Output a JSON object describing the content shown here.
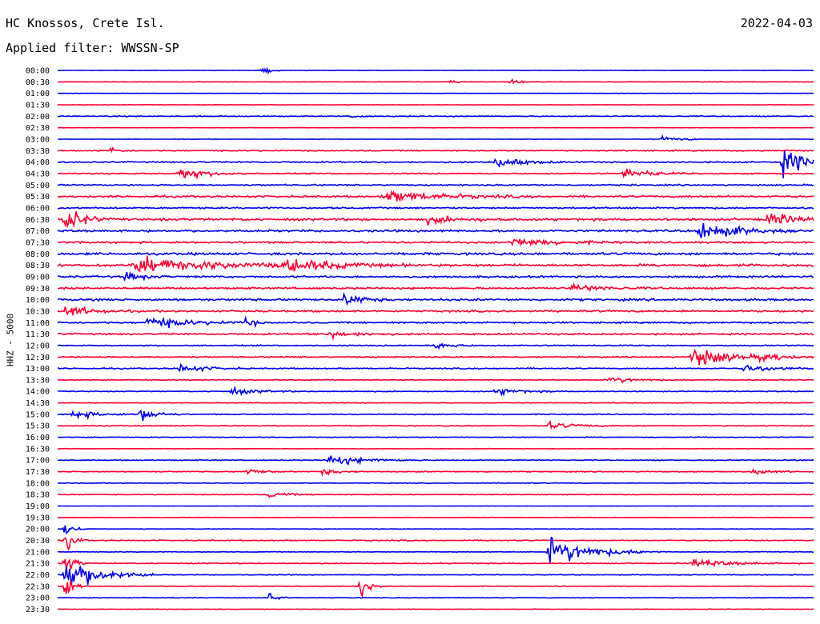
{
  "header": {
    "station": "HC Knossos, Crete Isl.",
    "filter": "Applied filter: WWSSN-SP",
    "date": "2022-04-03"
  },
  "chart_data": {
    "type": "line",
    "title": "HC Knossos, Crete Isl.",
    "subtitle": "Applied filter: WWSSN-SP",
    "ylabel": "HHZ - 5000",
    "xlabel": "",
    "series_colors": [
      "#0000ee",
      "#ff0033"
    ],
    "row_labels": [
      "00:00",
      "00:30",
      "01:00",
      "01:30",
      "02:00",
      "02:30",
      "03:00",
      "03:30",
      "04:00",
      "04:30",
      "05:00",
      "05:30",
      "06:00",
      "06:30",
      "07:00",
      "07:30",
      "08:00",
      "08:30",
      "09:00",
      "09:30",
      "10:00",
      "10:30",
      "11:00",
      "11:30",
      "12:00",
      "12:30",
      "13:00",
      "13:30",
      "14:00",
      "14:30",
      "15:00",
      "15:30",
      "16:00",
      "16:30",
      "17:00",
      "17:30",
      "18:00",
      "18:30",
      "19:00",
      "19:30",
      "20:00",
      "20:30",
      "21:00",
      "21:30",
      "22:00",
      "22:30",
      "23:00",
      "23:30"
    ],
    "row_noise": [
      0.2,
      0.2,
      0.1,
      0.2,
      0.4,
      0.1,
      0.15,
      0.5,
      0.6,
      0.5,
      0.6,
      0.8,
      0.7,
      1.0,
      0.9,
      0.8,
      1.0,
      1.0,
      0.8,
      0.8,
      0.9,
      0.8,
      0.7,
      0.7,
      0.5,
      0.5,
      0.5,
      0.4,
      0.4,
      0.3,
      0.4,
      0.4,
      0.3,
      0.2,
      0.4,
      0.4,
      0.3,
      0.3,
      0.1,
      0.2,
      0.2,
      0.4,
      0.3,
      0.4,
      0.3,
      0.3,
      0.3,
      0.2
    ],
    "events": [
      {
        "row": 0,
        "t": 0.27,
        "amp": 4,
        "dur": 0.01
      },
      {
        "row": 1,
        "t": 0.52,
        "amp": 2,
        "dur": 0.01
      },
      {
        "row": 1,
        "t": 0.6,
        "amp": 3,
        "dur": 0.01
      },
      {
        "row": 4,
        "t": 0.39,
        "amp": 2,
        "dur": 0.01
      },
      {
        "row": 6,
        "t": 0.8,
        "amp": 2,
        "dur": 0.03
      },
      {
        "row": 7,
        "t": 0.07,
        "amp": 3,
        "dur": 0.01
      },
      {
        "row": 8,
        "t": 0.58,
        "amp": 5,
        "dur": 0.03
      },
      {
        "row": 8,
        "t": 0.96,
        "amp": 12,
        "dur": 0.03
      },
      {
        "row": 9,
        "t": 0.16,
        "amp": 6,
        "dur": 0.03
      },
      {
        "row": 9,
        "t": 0.75,
        "amp": 5,
        "dur": 0.03
      },
      {
        "row": 11,
        "t": 0.43,
        "amp": 5,
        "dur": 0.07
      },
      {
        "row": 13,
        "t": 0.01,
        "amp": 12,
        "dur": 0.02
      },
      {
        "row": 13,
        "t": 0.49,
        "amp": 3,
        "dur": 0.04
      },
      {
        "row": 13,
        "t": 0.94,
        "amp": 6,
        "dur": 0.03
      },
      {
        "row": 14,
        "t": 0.85,
        "amp": 9,
        "dur": 0.04
      },
      {
        "row": 15,
        "t": 0.6,
        "amp": 4,
        "dur": 0.05
      },
      {
        "row": 17,
        "t": 0.1,
        "amp": 7,
        "dur": 0.1
      },
      {
        "row": 17,
        "t": 0.3,
        "amp": 5,
        "dur": 0.06
      },
      {
        "row": 18,
        "t": 0.09,
        "amp": 4,
        "dur": 0.02
      },
      {
        "row": 19,
        "t": 0.68,
        "amp": 3,
        "dur": 0.04
      },
      {
        "row": 20,
        "t": 0.38,
        "amp": 6,
        "dur": 0.02
      },
      {
        "row": 21,
        "t": 0.01,
        "amp": 5,
        "dur": 0.03
      },
      {
        "row": 22,
        "t": 0.12,
        "amp": 5,
        "dur": 0.05
      },
      {
        "row": 22,
        "t": 0.25,
        "amp": 4,
        "dur": 0.01
      },
      {
        "row": 23,
        "t": 0.36,
        "amp": 3,
        "dur": 0.03
      },
      {
        "row": 24,
        "t": 0.5,
        "amp": 3,
        "dur": 0.02
      },
      {
        "row": 25,
        "t": 0.84,
        "amp": 10,
        "dur": 0.04
      },
      {
        "row": 25,
        "t": 0.93,
        "amp": 4,
        "dur": 0.03
      },
      {
        "row": 26,
        "t": 0.16,
        "amp": 4,
        "dur": 0.03
      },
      {
        "row": 26,
        "t": 0.91,
        "amp": 4,
        "dur": 0.03
      },
      {
        "row": 27,
        "t": 0.73,
        "amp": 3,
        "dur": 0.03
      },
      {
        "row": 28,
        "t": 0.23,
        "amp": 3,
        "dur": 0.03
      },
      {
        "row": 28,
        "t": 0.58,
        "amp": 3,
        "dur": 0.03
      },
      {
        "row": 30,
        "t": 0.02,
        "amp": 4,
        "dur": 0.03
      },
      {
        "row": 30,
        "t": 0.11,
        "amp": 6,
        "dur": 0.02
      },
      {
        "row": 31,
        "t": 0.65,
        "amp": 3,
        "dur": 0.03
      },
      {
        "row": 34,
        "t": 0.36,
        "amp": 5,
        "dur": 0.04
      },
      {
        "row": 35,
        "t": 0.25,
        "amp": 3,
        "dur": 0.02
      },
      {
        "row": 35,
        "t": 0.35,
        "amp": 3,
        "dur": 0.02
      },
      {
        "row": 35,
        "t": 0.92,
        "amp": 3,
        "dur": 0.02
      },
      {
        "row": 37,
        "t": 0.28,
        "amp": 3,
        "dur": 0.02
      },
      {
        "row": 40,
        "t": 0.01,
        "amp": 8,
        "dur": 0.01
      },
      {
        "row": 41,
        "t": 0.01,
        "amp": 10,
        "dur": 0.01
      },
      {
        "row": 42,
        "t": 0.65,
        "amp": 13,
        "dur": 0.05
      },
      {
        "row": 43,
        "t": 0.01,
        "amp": 12,
        "dur": 0.01
      },
      {
        "row": 43,
        "t": 0.84,
        "amp": 4,
        "dur": 0.04
      },
      {
        "row": 44,
        "t": 0.01,
        "amp": 16,
        "dur": 0.04
      },
      {
        "row": 45,
        "t": 0.01,
        "amp": 12,
        "dur": 0.01
      },
      {
        "row": 45,
        "t": 0.4,
        "amp": 10,
        "dur": 0.01
      },
      {
        "row": 46,
        "t": 0.28,
        "amp": 5,
        "dur": 0.01
      }
    ]
  }
}
